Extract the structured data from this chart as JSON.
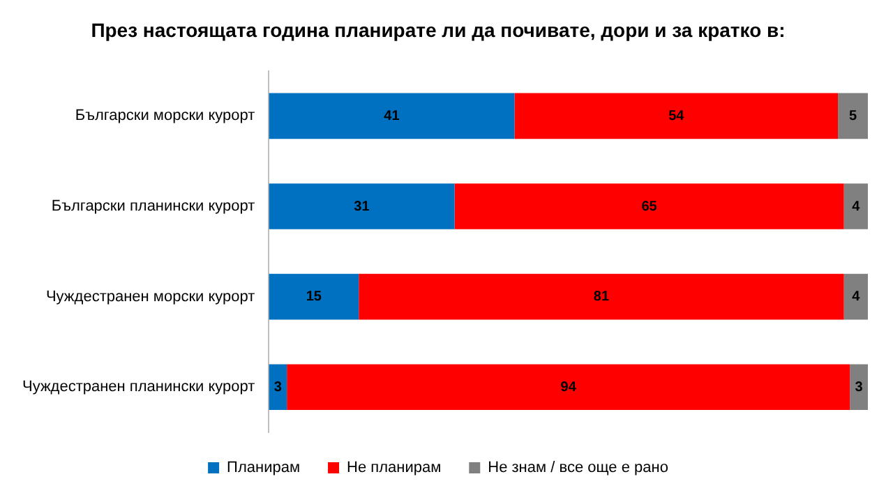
{
  "chart_data": {
    "type": "bar",
    "title": "През настоящата година планирате ли да почивате, дори и за кратко в:",
    "orientation": "horizontal",
    "stacked": true,
    "categories": [
      "Български морски курорт",
      "Български планински курорт",
      "Чуждестранен морски курорт",
      "Чуждестранен планински курорт"
    ],
    "series": [
      {
        "name": "Планирам",
        "color": "#0070c0",
        "values": [
          41,
          31,
          15,
          3
        ]
      },
      {
        "name": "Не планирам",
        "color": "#ff0000",
        "values": [
          54,
          65,
          81,
          94
        ]
      },
      {
        "name": "Не знам / все още е рано",
        "color": "#808080",
        "values": [
          5,
          4,
          4,
          3
        ]
      }
    ],
    "data_labels": true,
    "legend": "bottom",
    "tick_labels": "y"
  }
}
